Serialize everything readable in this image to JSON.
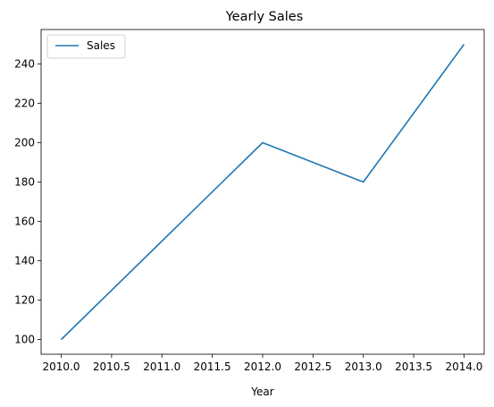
{
  "chart_data": {
    "type": "line",
    "title": "Yearly Sales",
    "xlabel": "Year",
    "ylabel": "",
    "x": [
      2010,
      2011,
      2012,
      2013,
      2014
    ],
    "series": [
      {
        "name": "Sales",
        "values": [
          100,
          150,
          200,
          180,
          250
        ],
        "color": "#1f77b4"
      }
    ],
    "xticks": [
      2010.0,
      2010.5,
      2011.0,
      2011.5,
      2012.0,
      2012.5,
      2013.0,
      2013.5,
      2014.0
    ],
    "xtick_labels": [
      "2010.0",
      "2010.5",
      "2011.0",
      "2011.5",
      "2012.0",
      "2012.5",
      "2013.0",
      "2013.5",
      "2014.0"
    ],
    "yticks": [
      100,
      120,
      140,
      160,
      180,
      200,
      220,
      240
    ],
    "ytick_labels": [
      "100",
      "120",
      "140",
      "160",
      "180",
      "200",
      "220",
      "240"
    ],
    "xlim": [
      2009.8,
      2014.2
    ],
    "ylim": [
      92.5,
      257.5
    ],
    "grid": false,
    "legend": "upper-left"
  }
}
